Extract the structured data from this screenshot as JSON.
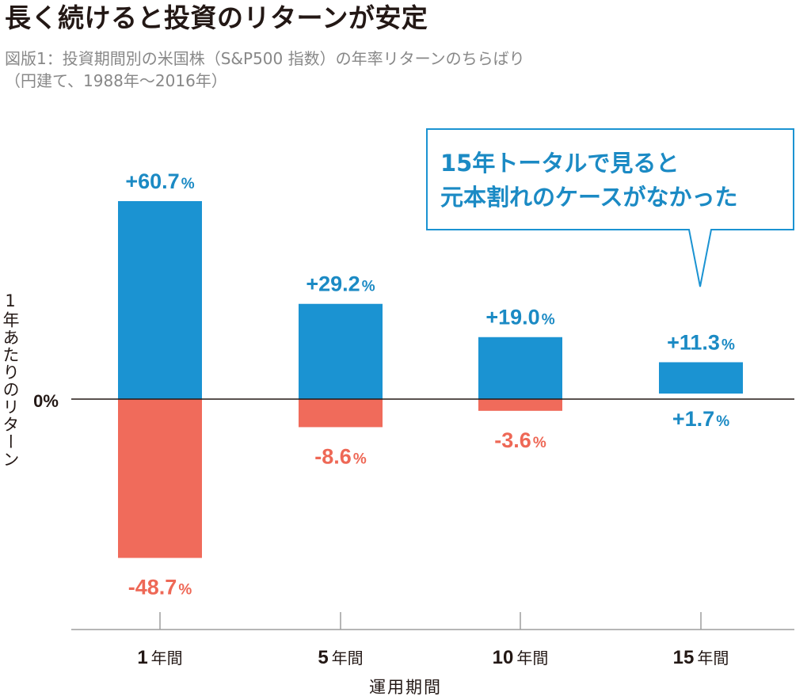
{
  "title": "長く続けると投資のリターンが安定",
  "subtitle_line1": "図版1：投資期間別の米国株（S&P500 指数）の年率リターンのちらばり",
  "subtitle_line2": "（円建て、1988年〜2016年）",
  "callout": {
    "line1": "15年トータルで見ると",
    "line2": "元本割れのケースがなかった"
  },
  "colors": {
    "max_bar": "#1b93d2",
    "min_bar": "#f06b5b",
    "max_label": "#1b8ac4",
    "min_label": "#ee6856",
    "axis": "#231815",
    "callout_border": "#1b93d2"
  },
  "chart_data": {
    "type": "bar",
    "title": "長く続けると投資のリターンが安定",
    "ylabel": "1年あたりのリターン",
    "xlabel": "運用期間",
    "zero_label": "0%",
    "ylim": [
      -60,
      70
    ],
    "categories": [
      {
        "num": "1",
        "unit": "年間"
      },
      {
        "num": "5",
        "unit": "年間"
      },
      {
        "num": "10",
        "unit": "年間"
      },
      {
        "num": "15",
        "unit": "年間"
      }
    ],
    "series": [
      {
        "name": "max",
        "values": [
          60.7,
          29.2,
          19.0,
          11.3
        ],
        "labels": [
          "+60.7",
          "+29.2",
          "+19.0",
          "+11.3"
        ]
      },
      {
        "name": "min",
        "values": [
          -48.7,
          -8.6,
          -3.6,
          1.7
        ],
        "labels": [
          "-48.7",
          "-8.6",
          "-3.6",
          "+1.7"
        ]
      }
    ],
    "unit_suffix": "%"
  }
}
